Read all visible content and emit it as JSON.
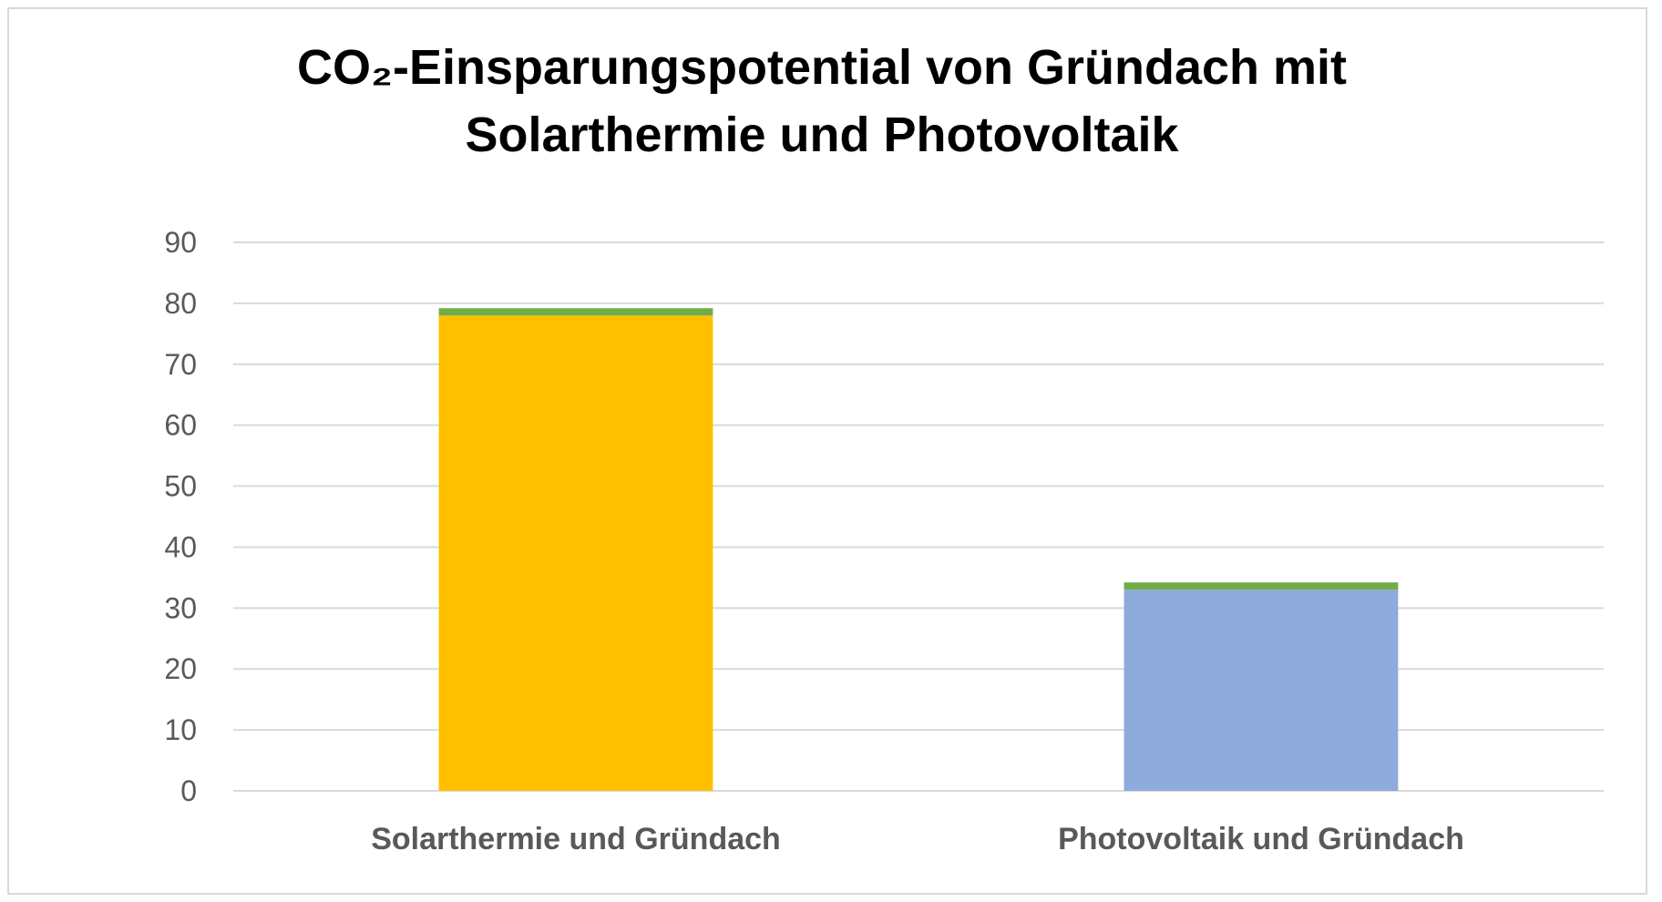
{
  "chart_data": {
    "type": "bar",
    "stacked": true,
    "title_lines": [
      "CO₂-Einsparungspotential von Gründach mit",
      "Solarthermie und Photovoltaik"
    ],
    "xlabel": "",
    "ylabel": "",
    "categories": [
      "Solarthermie und Gründach",
      "Photovoltaik und Gründach"
    ],
    "ylim": [
      0,
      90
    ],
    "yticks": [
      0,
      10,
      20,
      30,
      40,
      50,
      60,
      70,
      80,
      90
    ],
    "grid": true,
    "legend": "none",
    "bars": [
      {
        "category": "Solarthermie und Gründach",
        "segments": [
          {
            "value": 78,
            "color": "#FFC000"
          },
          {
            "value": 1.2,
            "color": "#70AD47"
          }
        ]
      },
      {
        "category": "Photovoltaik und Gründach",
        "segments": [
          {
            "value": 33,
            "color": "#8FAADC"
          },
          {
            "value": 1.2,
            "color": "#70AD47"
          }
        ]
      }
    ],
    "colors": {
      "grid": "#d9d9d9",
      "axis": "#d9d9d9",
      "tick_text": "#595959",
      "title_text": "#000000"
    }
  }
}
